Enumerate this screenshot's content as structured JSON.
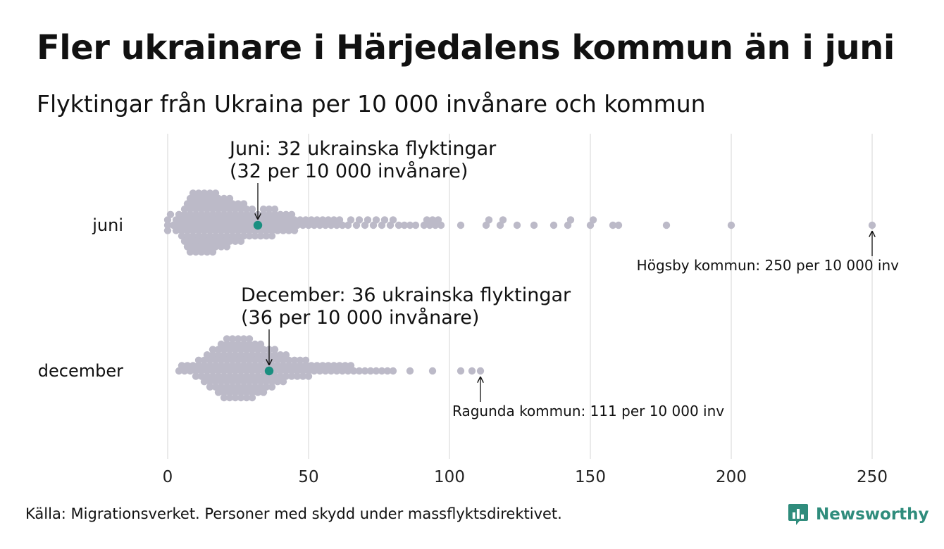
{
  "header": {
    "title": "Fler ukrainare i Härjedalens kommun än i juni",
    "subtitle": "Flyktingar från Ukraina per 10 000 invånare och kommun"
  },
  "footer": {
    "source": "Källa: Migrationsverket. Personer med skydd under massflyktsdirektivet.",
    "brand": "Newsworthy"
  },
  "colors": {
    "dot": "#bcbac8",
    "highlight": "#1a8f80",
    "grid": "#d4d4d4",
    "brand": "#2f8c7c"
  },
  "chart_data": {
    "type": "scatter",
    "subtype": "beeswarm",
    "title": "Fler ukrainare i Härjedalens kommun än i juni",
    "subtitle": "Flyktingar från Ukraina per 10 000 invånare och kommun",
    "x_ticks": [
      0,
      50,
      100,
      150,
      200,
      250
    ],
    "xlim": [
      0,
      250
    ],
    "grid": true,
    "rows": [
      {
        "name": "juni",
        "highlight": {
          "value": 32,
          "label_line1": "Juni: 32 ukrainska flyktingar",
          "label_line2": "(32 per 10 000 invånare)"
        },
        "max_annotation": {
          "value": 250,
          "label": "Högsby kommun: 250 per 10 000 inv"
        },
        "values": [
          0,
          0,
          0,
          1,
          2,
          3,
          3,
          4,
          4,
          5,
          5,
          5,
          6,
          6,
          6,
          6,
          7,
          7,
          7,
          7,
          7,
          8,
          8,
          8,
          8,
          8,
          8,
          9,
          9,
          9,
          9,
          9,
          9,
          10,
          10,
          10,
          10,
          10,
          10,
          11,
          11,
          11,
          11,
          11,
          11,
          12,
          12,
          12,
          12,
          12,
          12,
          13,
          13,
          13,
          13,
          13,
          13,
          14,
          14,
          14,
          14,
          14,
          14,
          15,
          15,
          15,
          15,
          15,
          15,
          16,
          16,
          16,
          16,
          16,
          16,
          17,
          17,
          17,
          17,
          17,
          17,
          18,
          18,
          18,
          18,
          18,
          19,
          19,
          19,
          19,
          19,
          20,
          20,
          20,
          20,
          20,
          21,
          21,
          21,
          21,
          21,
          22,
          22,
          22,
          22,
          22,
          23,
          23,
          23,
          23,
          24,
          24,
          24,
          24,
          25,
          25,
          25,
          25,
          26,
          26,
          26,
          26,
          27,
          27,
          27,
          27,
          28,
          28,
          28,
          29,
          29,
          29,
          30,
          30,
          30,
          31,
          31,
          31,
          32,
          32,
          33,
          33,
          33,
          34,
          34,
          34,
          35,
          35,
          35,
          36,
          36,
          36,
          37,
          37,
          37,
          38,
          38,
          38,
          39,
          39,
          40,
          40,
          41,
          41,
          42,
          42,
          43,
          43,
          44,
          44,
          45,
          45,
          46,
          47,
          48,
          49,
          50,
          51,
          52,
          53,
          54,
          55,
          56,
          57,
          58,
          59,
          60,
          61,
          62,
          64,
          65,
          67,
          68,
          70,
          71,
          73,
          74,
          76,
          77,
          79,
          80,
          82,
          84,
          86,
          88,
          91,
          92,
          93,
          94,
          95,
          96,
          97,
          104,
          113,
          114,
          118,
          119,
          124,
          130,
          137,
          142,
          143,
          150,
          151,
          158,
          160,
          177,
          200,
          250
        ]
      },
      {
        "name": "december",
        "highlight": {
          "value": 36,
          "label_line1": "December: 36 ukrainska flyktingar",
          "label_line2": "(36 per 10 000 invånare)"
        },
        "max_annotation": {
          "value": 111,
          "label": "Ragunda kommun: 111 per 10 000 inv"
        },
        "values": [
          4,
          5,
          6,
          7,
          8,
          9,
          10,
          10,
          11,
          11,
          12,
          12,
          13,
          13,
          13,
          14,
          14,
          14,
          15,
          15,
          15,
          15,
          16,
          16,
          16,
          16,
          17,
          17,
          17,
          17,
          18,
          18,
          18,
          18,
          18,
          19,
          19,
          19,
          19,
          19,
          20,
          20,
          20,
          20,
          20,
          20,
          21,
          21,
          21,
          21,
          21,
          21,
          22,
          22,
          22,
          22,
          22,
          22,
          23,
          23,
          23,
          23,
          23,
          23,
          24,
          24,
          24,
          24,
          24,
          24,
          25,
          25,
          25,
          25,
          25,
          25,
          26,
          26,
          26,
          26,
          26,
          26,
          27,
          27,
          27,
          27,
          27,
          27,
          28,
          28,
          28,
          28,
          28,
          28,
          29,
          29,
          29,
          29,
          29,
          29,
          30,
          30,
          30,
          30,
          30,
          30,
          31,
          31,
          31,
          31,
          31,
          32,
          32,
          32,
          32,
          32,
          33,
          33,
          33,
          33,
          33,
          34,
          34,
          34,
          34,
          34,
          35,
          35,
          35,
          35,
          36,
          36,
          36,
          36,
          37,
          37,
          37,
          37,
          38,
          38,
          38,
          38,
          39,
          39,
          39,
          40,
          40,
          40,
          41,
          41,
          41,
          42,
          42,
          42,
          43,
          43,
          44,
          44,
          45,
          45,
          46,
          46,
          47,
          47,
          48,
          48,
          49,
          49,
          50,
          50,
          51,
          52,
          53,
          54,
          55,
          56,
          57,
          58,
          59,
          60,
          61,
          62,
          63,
          64,
          65,
          66,
          68,
          70,
          72,
          74,
          76,
          78,
          80,
          86,
          94,
          104,
          108,
          111
        ]
      }
    ]
  }
}
